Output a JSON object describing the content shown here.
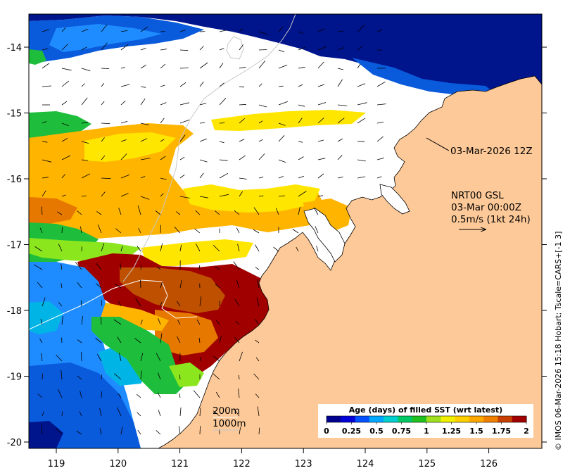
{
  "map": {
    "lon_ticks": [
      "119",
      "120",
      "121",
      "122",
      "123",
      "124",
      "125",
      "126"
    ],
    "lat_ticks": [
      "-14",
      "-15",
      "-16",
      "-17",
      "-18",
      "-19",
      "-20"
    ]
  },
  "annotations": {
    "valid_time": "03-Mar-2026 12Z",
    "product": "NRT00 GSL",
    "product_time": "03-Mar 00:00Z",
    "scale_arrow_label": "0.5m/s (1kt 24h)",
    "contour_200": "200m",
    "contour_1000": "1000m"
  },
  "colorbar": {
    "title": "Age (days) of filled SST (wrt latest)",
    "labels": [
      "0",
      "0.25",
      "0.5",
      "0.75",
      "1",
      "1.25",
      "1.5",
      "1.75",
      "2"
    ],
    "colors": [
      "#00008f",
      "#0000d8",
      "#0050ff",
      "#00a8ff",
      "#00d0d0",
      "#00c864",
      "#20c020",
      "#a0e020",
      "#f0f000",
      "#ffd000",
      "#ffa800",
      "#f08000",
      "#c84000",
      "#a00000"
    ]
  },
  "credit": "© IMOS 06-Mar-2026 15:18 Hobart; Tscale=CARS+[-1 3]",
  "palette": {
    "land": "#fdc998",
    "nodata": "#ffffff",
    "deep_blue": "#00148c",
    "mid_blue": "#0a5adc",
    "light_blue": "#1e8cff",
    "cyan": "#00b4e6",
    "green": "#1ebe3c",
    "lime": "#8ce61e",
    "yellow": "#ffe600",
    "orange": "#ffb400",
    "dark_orange": "#e67800",
    "brown": "#be5000",
    "red": "#a00000"
  }
}
